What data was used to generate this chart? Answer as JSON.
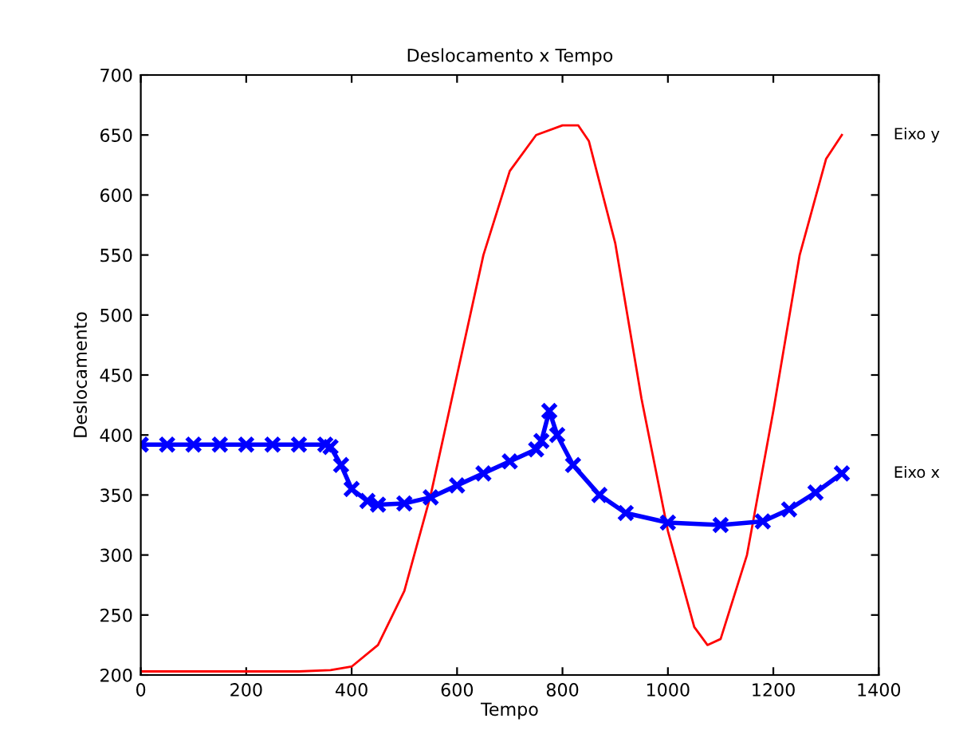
{
  "chart_data": {
    "type": "line",
    "title": "Deslocamento x Tempo",
    "xlabel": "Tempo",
    "ylabel": "Deslocamento",
    "xlim": [
      0,
      1400
    ],
    "ylim": [
      200,
      700
    ],
    "xticks": [
      0,
      200,
      400,
      600,
      800,
      1000,
      1200,
      1400
    ],
    "yticks": [
      200,
      250,
      300,
      350,
      400,
      450,
      500,
      550,
      600,
      650,
      700
    ],
    "grid": false,
    "series": [
      {
        "name": "Eixo y",
        "color": "#ff0000",
        "marker": "none",
        "x": [
          0,
          100,
          200,
          300,
          360,
          400,
          450,
          500,
          550,
          600,
          650,
          700,
          750,
          800,
          830,
          850,
          900,
          950,
          1000,
          1050,
          1075,
          1100,
          1150,
          1200,
          1250,
          1300,
          1330
        ],
        "values": [
          203,
          203,
          203,
          203,
          204,
          207,
          225,
          270,
          350,
          450,
          550,
          620,
          650,
          658,
          658,
          645,
          560,
          430,
          320,
          240,
          225,
          230,
          300,
          420,
          550,
          630,
          650
        ]
      },
      {
        "name": "Eixo x",
        "color": "#0000ff",
        "marker": "cross",
        "x": [
          0,
          50,
          100,
          150,
          200,
          250,
          300,
          350,
          360,
          380,
          400,
          430,
          450,
          500,
          550,
          600,
          650,
          700,
          750,
          760,
          775,
          790,
          820,
          870,
          920,
          1000,
          1100,
          1180,
          1230,
          1280,
          1330
        ],
        "values": [
          392,
          392,
          392,
          392,
          392,
          392,
          392,
          392,
          390,
          375,
          355,
          345,
          342,
          343,
          348,
          358,
          368,
          378,
          388,
          395,
          420,
          400,
          375,
          350,
          335,
          327,
          325,
          328,
          338,
          352,
          368
        ]
      }
    ]
  }
}
